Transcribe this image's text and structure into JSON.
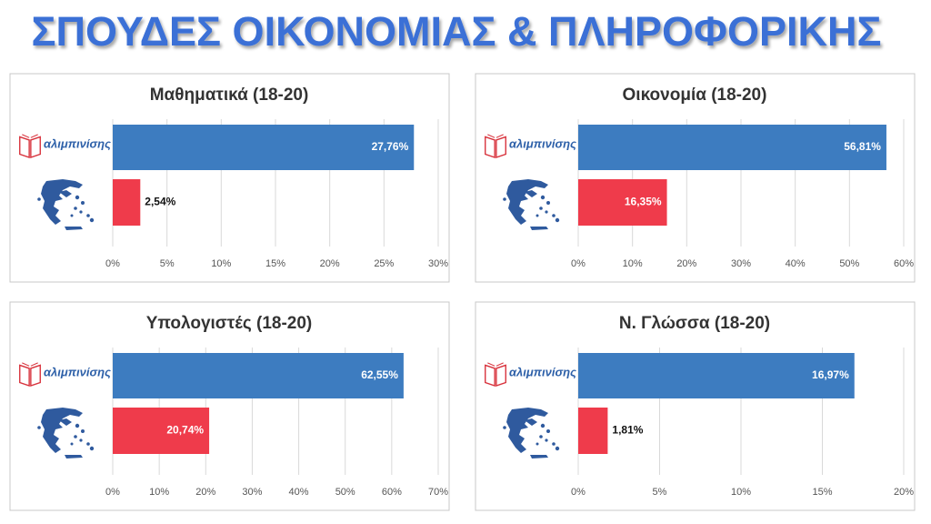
{
  "title": "ΣΠΟΥΔΕΣ ΟΙΚΟΝΟΜΙΑΣ & ΠΛΗΡΟΦΟΡΙΚΗΣ",
  "chart_data": [
    {
      "type": "bar",
      "orientation": "horizontal",
      "title": "Μαθηματικά  (18-20)",
      "categories": [
        "αλιμπινίσης",
        null
      ],
      "values": [
        27.76,
        2.54
      ],
      "value_labels": [
        "27,76%",
        "2,54%"
      ],
      "colors": [
        "#3d7cc0",
        "#ef3b4b"
      ],
      "xlim": [
        0,
        30
      ],
      "xticks": [
        {
          "value": 0,
          "label": "0%"
        },
        {
          "value": 5,
          "label": "5%"
        },
        {
          "value": 10,
          "label": "10%"
        },
        {
          "value": 15,
          "label": "15%"
        },
        {
          "value": 20,
          "label": "20%"
        },
        {
          "value": 25,
          "label": "25%"
        },
        {
          "value": 30,
          "label": "30%"
        }
      ],
      "grid": true
    },
    {
      "type": "bar",
      "orientation": "horizontal",
      "title": "Οικονομία (18-20)",
      "categories": [
        "αλιμπινίσης",
        null
      ],
      "values": [
        56.81,
        16.35
      ],
      "value_labels": [
        "56,81%",
        "16,35%"
      ],
      "colors": [
        "#3d7cc0",
        "#ef3b4b"
      ],
      "xlim": [
        0,
        60
      ],
      "xticks": [
        {
          "value": 0,
          "label": "0%"
        },
        {
          "value": 10,
          "label": "10%"
        },
        {
          "value": 20,
          "label": "20%"
        },
        {
          "value": 30,
          "label": "30%"
        },
        {
          "value": 40,
          "label": "40%"
        },
        {
          "value": 50,
          "label": "50%"
        },
        {
          "value": 60,
          "label": "60%"
        }
      ],
      "grid": true
    },
    {
      "type": "bar",
      "orientation": "horizontal",
      "title": "Υπολογιστές (18-20)",
      "categories": [
        "αλιμπινίσης",
        null
      ],
      "values": [
        62.55,
        20.74
      ],
      "value_labels": [
        "62,55%",
        "20,74%"
      ],
      "colors": [
        "#3d7cc0",
        "#ef3b4b"
      ],
      "xlim": [
        0,
        70
      ],
      "xticks": [
        {
          "value": 0,
          "label": "0%"
        },
        {
          "value": 10,
          "label": "10%"
        },
        {
          "value": 20,
          "label": "20%"
        },
        {
          "value": 30,
          "label": "30%"
        },
        {
          "value": 40,
          "label": "40%"
        },
        {
          "value": 50,
          "label": "50%"
        },
        {
          "value": 60,
          "label": "60%"
        },
        {
          "value": 70,
          "label": "70%"
        }
      ],
      "grid": true
    },
    {
      "type": "bar",
      "orientation": "horizontal",
      "title": "Ν. Γλώσσα (18-20)",
      "categories": [
        "αλιμπινίσης",
        null
      ],
      "values": [
        16.97,
        1.81
      ],
      "value_labels": [
        "16,97%",
        "1,81%"
      ],
      "colors": [
        "#3d7cc0",
        "#ef3b4b"
      ],
      "xlim": [
        0,
        20
      ],
      "xticks": [
        {
          "value": 0,
          "label": "0%"
        },
        {
          "value": 5,
          "label": "5%"
        },
        {
          "value": 10,
          "label": "10%"
        },
        {
          "value": 15,
          "label": "15%"
        },
        {
          "value": 20,
          "label": "20%"
        }
      ],
      "grid": true
    }
  ]
}
